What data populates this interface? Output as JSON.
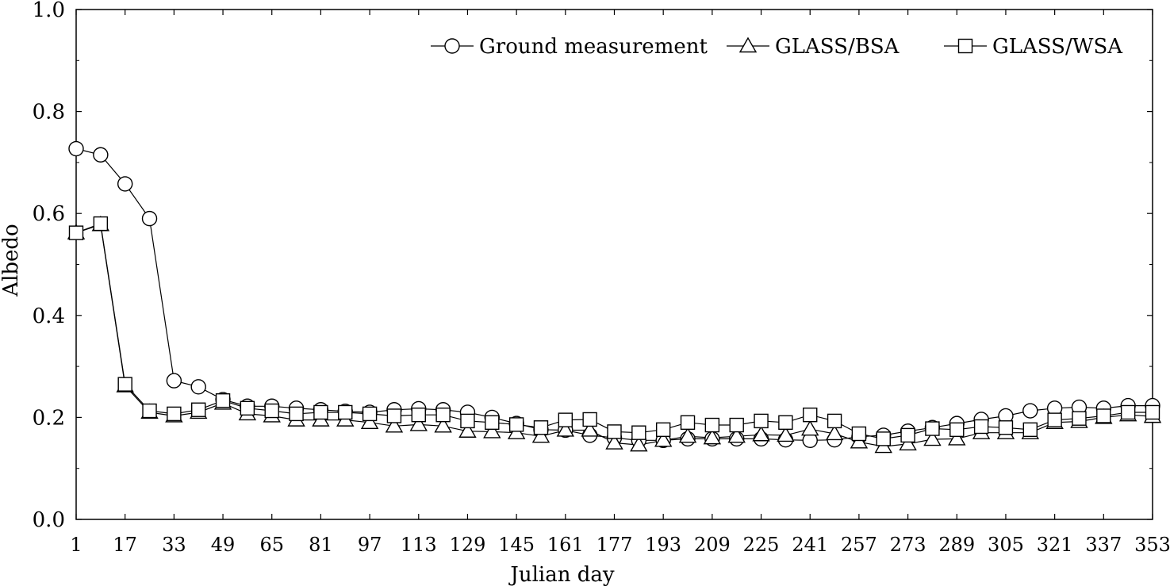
{
  "chart_data": {
    "type": "line",
    "xlabel": "Julian day",
    "ylabel": "Albedo",
    "xlim": [
      1,
      353
    ],
    "ylim": [
      0.0,
      1.0
    ],
    "xticks": [
      1,
      17,
      33,
      49,
      65,
      81,
      97,
      113,
      129,
      145,
      161,
      177,
      193,
      209,
      225,
      241,
      257,
      273,
      289,
      305,
      321,
      337,
      353
    ],
    "yticks": [
      0.0,
      0.2,
      0.4,
      0.6,
      0.8,
      1.0
    ],
    "ytick_labels": [
      "0.0",
      "0.2",
      "0.4",
      "0.6",
      "0.8",
      "1.0"
    ],
    "legend_position": "top-right",
    "grid": false,
    "x": [
      1,
      9,
      17,
      25,
      33,
      41,
      49,
      57,
      65,
      73,
      81,
      89,
      97,
      105,
      113,
      121,
      129,
      137,
      145,
      153,
      161,
      169,
      177,
      185,
      193,
      201,
      209,
      217,
      225,
      233,
      241,
      249,
      257,
      265,
      273,
      281,
      289,
      297,
      305,
      313,
      321,
      329,
      337,
      345,
      353
    ],
    "series": [
      {
        "name": "Ground measurement",
        "marker": "circle",
        "values": [
          0.727,
          0.715,
          0.658,
          0.59,
          0.272,
          0.26,
          0.235,
          0.222,
          0.222,
          0.218,
          0.215,
          0.212,
          0.21,
          0.215,
          0.217,
          0.215,
          0.21,
          0.2,
          0.188,
          0.176,
          0.175,
          0.165,
          0.16,
          0.155,
          0.155,
          0.158,
          0.158,
          0.158,
          0.158,
          0.156,
          0.155,
          0.156,
          0.162,
          0.165,
          0.173,
          0.18,
          0.188,
          0.196,
          0.203,
          0.213,
          0.218,
          0.22,
          0.218,
          0.223,
          0.223
        ]
      },
      {
        "name": "GLASS/BSA",
        "marker": "triangle",
        "values": [
          0.562,
          0.578,
          0.262,
          0.21,
          0.203,
          0.21,
          0.228,
          0.207,
          0.203,
          0.195,
          0.195,
          0.195,
          0.19,
          0.183,
          0.186,
          0.183,
          0.173,
          0.172,
          0.17,
          0.163,
          0.175,
          0.175,
          0.15,
          0.146,
          0.155,
          0.163,
          0.16,
          0.163,
          0.166,
          0.165,
          0.177,
          0.168,
          0.152,
          0.143,
          0.148,
          0.157,
          0.158,
          0.17,
          0.17,
          0.17,
          0.19,
          0.192,
          0.2,
          0.205,
          0.202
        ]
      },
      {
        "name": "GLASS/WSA",
        "marker": "square",
        "values": [
          0.562,
          0.58,
          0.265,
          0.213,
          0.207,
          0.215,
          0.233,
          0.218,
          0.213,
          0.207,
          0.21,
          0.21,
          0.207,
          0.203,
          0.205,
          0.205,
          0.193,
          0.19,
          0.186,
          0.18,
          0.195,
          0.196,
          0.172,
          0.17,
          0.176,
          0.19,
          0.185,
          0.185,
          0.193,
          0.19,
          0.205,
          0.193,
          0.168,
          0.158,
          0.165,
          0.178,
          0.176,
          0.182,
          0.18,
          0.176,
          0.195,
          0.198,
          0.203,
          0.21,
          0.21
        ]
      }
    ]
  }
}
